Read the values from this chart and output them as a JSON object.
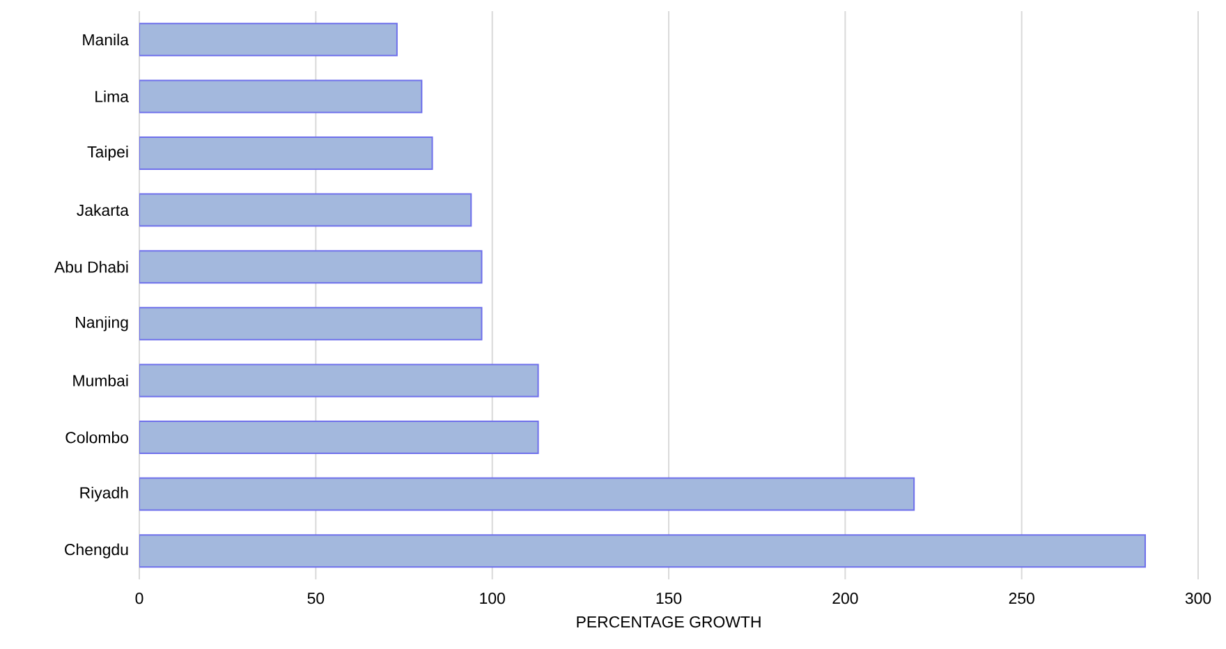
{
  "chart_data": {
    "type": "bar",
    "orientation": "horizontal",
    "xlabel": "PERCENTAGE GROWTH",
    "categories": [
      "Manila",
      "Lima",
      "Taipei",
      "Jakarta",
      "Abu Dhabi",
      "Nanjing",
      "Mumbai",
      "Colombo",
      "Riyadh",
      "Chengdu"
    ],
    "values": [
      73,
      80,
      83,
      94,
      97,
      97,
      113,
      113,
      219.5,
      285
    ],
    "color": "#a3b8dd",
    "xlim": [
      0,
      300
    ],
    "xticks": [
      0,
      50,
      100,
      150,
      200,
      250,
      300
    ],
    "grid": "x"
  }
}
